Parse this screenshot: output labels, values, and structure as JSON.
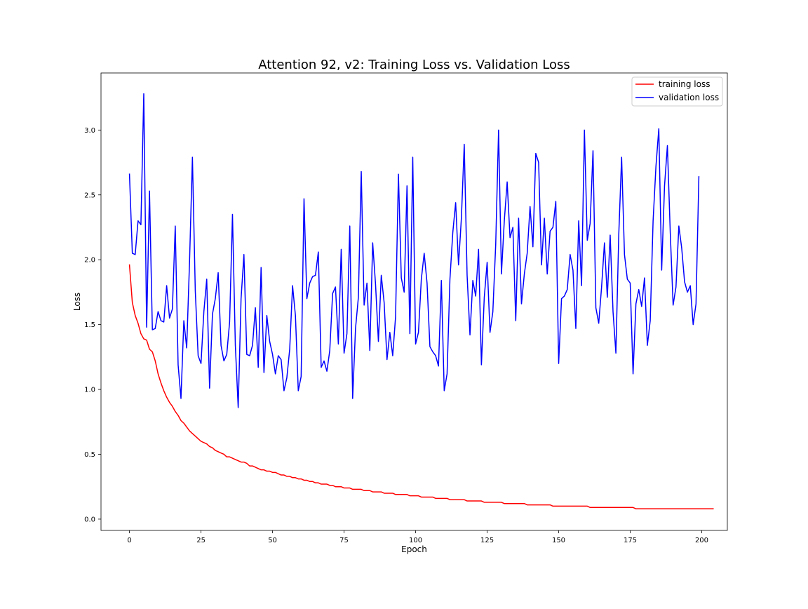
{
  "chart_data": {
    "type": "line",
    "title": "Attention 92, v2: Training Loss vs. Validation Loss",
    "xlabel": "Epoch",
    "ylabel": "Loss",
    "xlim": [
      -9.95,
      208.95
    ],
    "ylim": [
      -0.087,
      3.44
    ],
    "x_ticks": [
      0,
      25,
      50,
      75,
      100,
      125,
      150,
      175,
      200
    ],
    "y_ticks": [
      0.0,
      0.5,
      1.0,
      1.5,
      2.0,
      2.5,
      3.0
    ],
    "x_tick_labels": [
      "0",
      "25",
      "50",
      "75",
      "100",
      "125",
      "150",
      "175",
      "200"
    ],
    "y_tick_labels": [
      "0.0",
      "0.5",
      "1.0",
      "1.5",
      "2.0",
      "2.5",
      "3.0"
    ],
    "grid": false,
    "legend_position": "top-right",
    "x_start": 0,
    "x_step": 1,
    "series": [
      {
        "name": "training loss",
        "color": "#ff0000",
        "values": [
          1.96,
          1.67,
          1.57,
          1.51,
          1.43,
          1.39,
          1.38,
          1.31,
          1.29,
          1.22,
          1.12,
          1.05,
          0.99,
          0.94,
          0.9,
          0.87,
          0.83,
          0.8,
          0.76,
          0.74,
          0.71,
          0.68,
          0.66,
          0.64,
          0.62,
          0.6,
          0.59,
          0.58,
          0.56,
          0.55,
          0.53,
          0.52,
          0.51,
          0.5,
          0.48,
          0.48,
          0.47,
          0.46,
          0.45,
          0.44,
          0.44,
          0.43,
          0.41,
          0.41,
          0.4,
          0.39,
          0.38,
          0.38,
          0.37,
          0.37,
          0.36,
          0.36,
          0.35,
          0.34,
          0.34,
          0.33,
          0.33,
          0.32,
          0.32,
          0.31,
          0.31,
          0.3,
          0.3,
          0.29,
          0.29,
          0.28,
          0.28,
          0.27,
          0.27,
          0.27,
          0.26,
          0.26,
          0.25,
          0.25,
          0.25,
          0.24,
          0.24,
          0.24,
          0.23,
          0.23,
          0.23,
          0.23,
          0.22,
          0.22,
          0.22,
          0.21,
          0.21,
          0.21,
          0.21,
          0.2,
          0.2,
          0.2,
          0.2,
          0.19,
          0.19,
          0.19,
          0.19,
          0.19,
          0.18,
          0.18,
          0.18,
          0.18,
          0.17,
          0.17,
          0.17,
          0.17,
          0.17,
          0.16,
          0.16,
          0.16,
          0.16,
          0.16,
          0.15,
          0.15,
          0.15,
          0.15,
          0.15,
          0.15,
          0.14,
          0.14,
          0.14,
          0.14,
          0.14,
          0.14,
          0.13,
          0.13,
          0.13,
          0.13,
          0.13,
          0.13,
          0.13,
          0.12,
          0.12,
          0.12,
          0.12,
          0.12,
          0.12,
          0.12,
          0.12,
          0.11,
          0.11,
          0.11,
          0.11,
          0.11,
          0.11,
          0.11,
          0.11,
          0.11,
          0.1,
          0.1,
          0.1,
          0.1,
          0.1,
          0.1,
          0.1,
          0.1,
          0.1,
          0.1,
          0.1,
          0.1,
          0.1,
          0.09,
          0.09,
          0.09,
          0.09,
          0.09,
          0.09,
          0.09,
          0.09,
          0.09,
          0.09,
          0.09,
          0.09,
          0.09,
          0.09,
          0.09,
          0.09,
          0.08,
          0.08,
          0.08,
          0.08,
          0.08,
          0.08,
          0.08,
          0.08,
          0.08,
          0.08,
          0.08,
          0.08,
          0.08,
          0.08,
          0.08,
          0.08,
          0.08,
          0.08,
          0.08,
          0.08,
          0.08,
          0.08,
          0.08,
          0.08,
          0.08,
          0.08,
          0.08,
          0.08
        ]
      },
      {
        "name": "validation loss",
        "color": "#0000ff",
        "values": [
          2.66,
          2.05,
          2.04,
          2.3,
          2.27,
          3.28,
          1.48,
          2.53,
          1.46,
          1.47,
          1.6,
          1.53,
          1.52,
          1.8,
          1.55,
          1.62,
          2.26,
          1.19,
          0.93,
          1.53,
          1.32,
          1.99,
          2.79,
          1.76,
          1.26,
          1.2,
          1.6,
          1.85,
          1.01,
          1.58,
          1.7,
          1.9,
          1.34,
          1.22,
          1.27,
          1.52,
          2.35,
          1.34,
          0.86,
          1.7,
          2.04,
          1.27,
          1.26,
          1.34,
          1.63,
          1.17,
          1.94,
          1.13,
          1.57,
          1.37,
          1.27,
          1.12,
          1.26,
          1.23,
          0.99,
          1.09,
          1.31,
          1.8,
          1.57,
          0.99,
          1.1,
          2.47,
          1.7,
          1.82,
          1.87,
          1.88,
          2.06,
          1.17,
          1.22,
          1.14,
          1.3,
          1.74,
          1.79,
          1.35,
          2.08,
          1.28,
          1.43,
          2.26,
          0.93,
          1.47,
          1.71,
          2.68,
          1.65,
          1.82,
          1.3,
          2.13,
          1.81,
          1.37,
          1.88,
          1.67,
          1.23,
          1.44,
          1.26,
          1.56,
          2.66,
          1.86,
          1.75,
          2.57,
          1.43,
          2.79,
          1.35,
          1.44,
          1.85,
          2.05,
          1.82,
          1.33,
          1.29,
          1.26,
          1.18,
          1.84,
          0.99,
          1.12,
          1.85,
          2.21,
          2.44,
          1.96,
          2.32,
          2.89,
          1.88,
          1.42,
          1.84,
          1.72,
          2.08,
          1.19,
          1.71,
          1.98,
          1.44,
          1.6,
          2.12,
          3.0,
          1.89,
          2.3,
          2.6,
          2.17,
          2.25,
          1.53,
          2.32,
          1.66,
          1.89,
          2.05,
          2.41,
          2.1,
          2.82,
          2.75,
          1.96,
          2.32,
          1.89,
          2.22,
          2.25,
          2.45,
          1.2,
          1.7,
          1.72,
          1.77,
          2.04,
          1.92,
          1.47,
          2.3,
          1.8,
          3.0,
          2.15,
          2.28,
          2.84,
          1.63,
          1.51,
          1.79,
          2.13,
          1.71,
          2.19,
          1.6,
          1.28,
          2.19,
          2.79,
          2.04,
          1.85,
          1.82,
          1.12,
          1.66,
          1.77,
          1.64,
          1.86,
          1.34,
          1.53,
          2.3,
          2.72,
          3.01,
          1.92,
          2.57,
          2.88,
          2.21,
          1.65,
          1.79,
          2.26,
          2.09,
          1.83,
          1.75,
          1.8,
          1.5,
          1.66,
          2.64
        ]
      }
    ]
  }
}
